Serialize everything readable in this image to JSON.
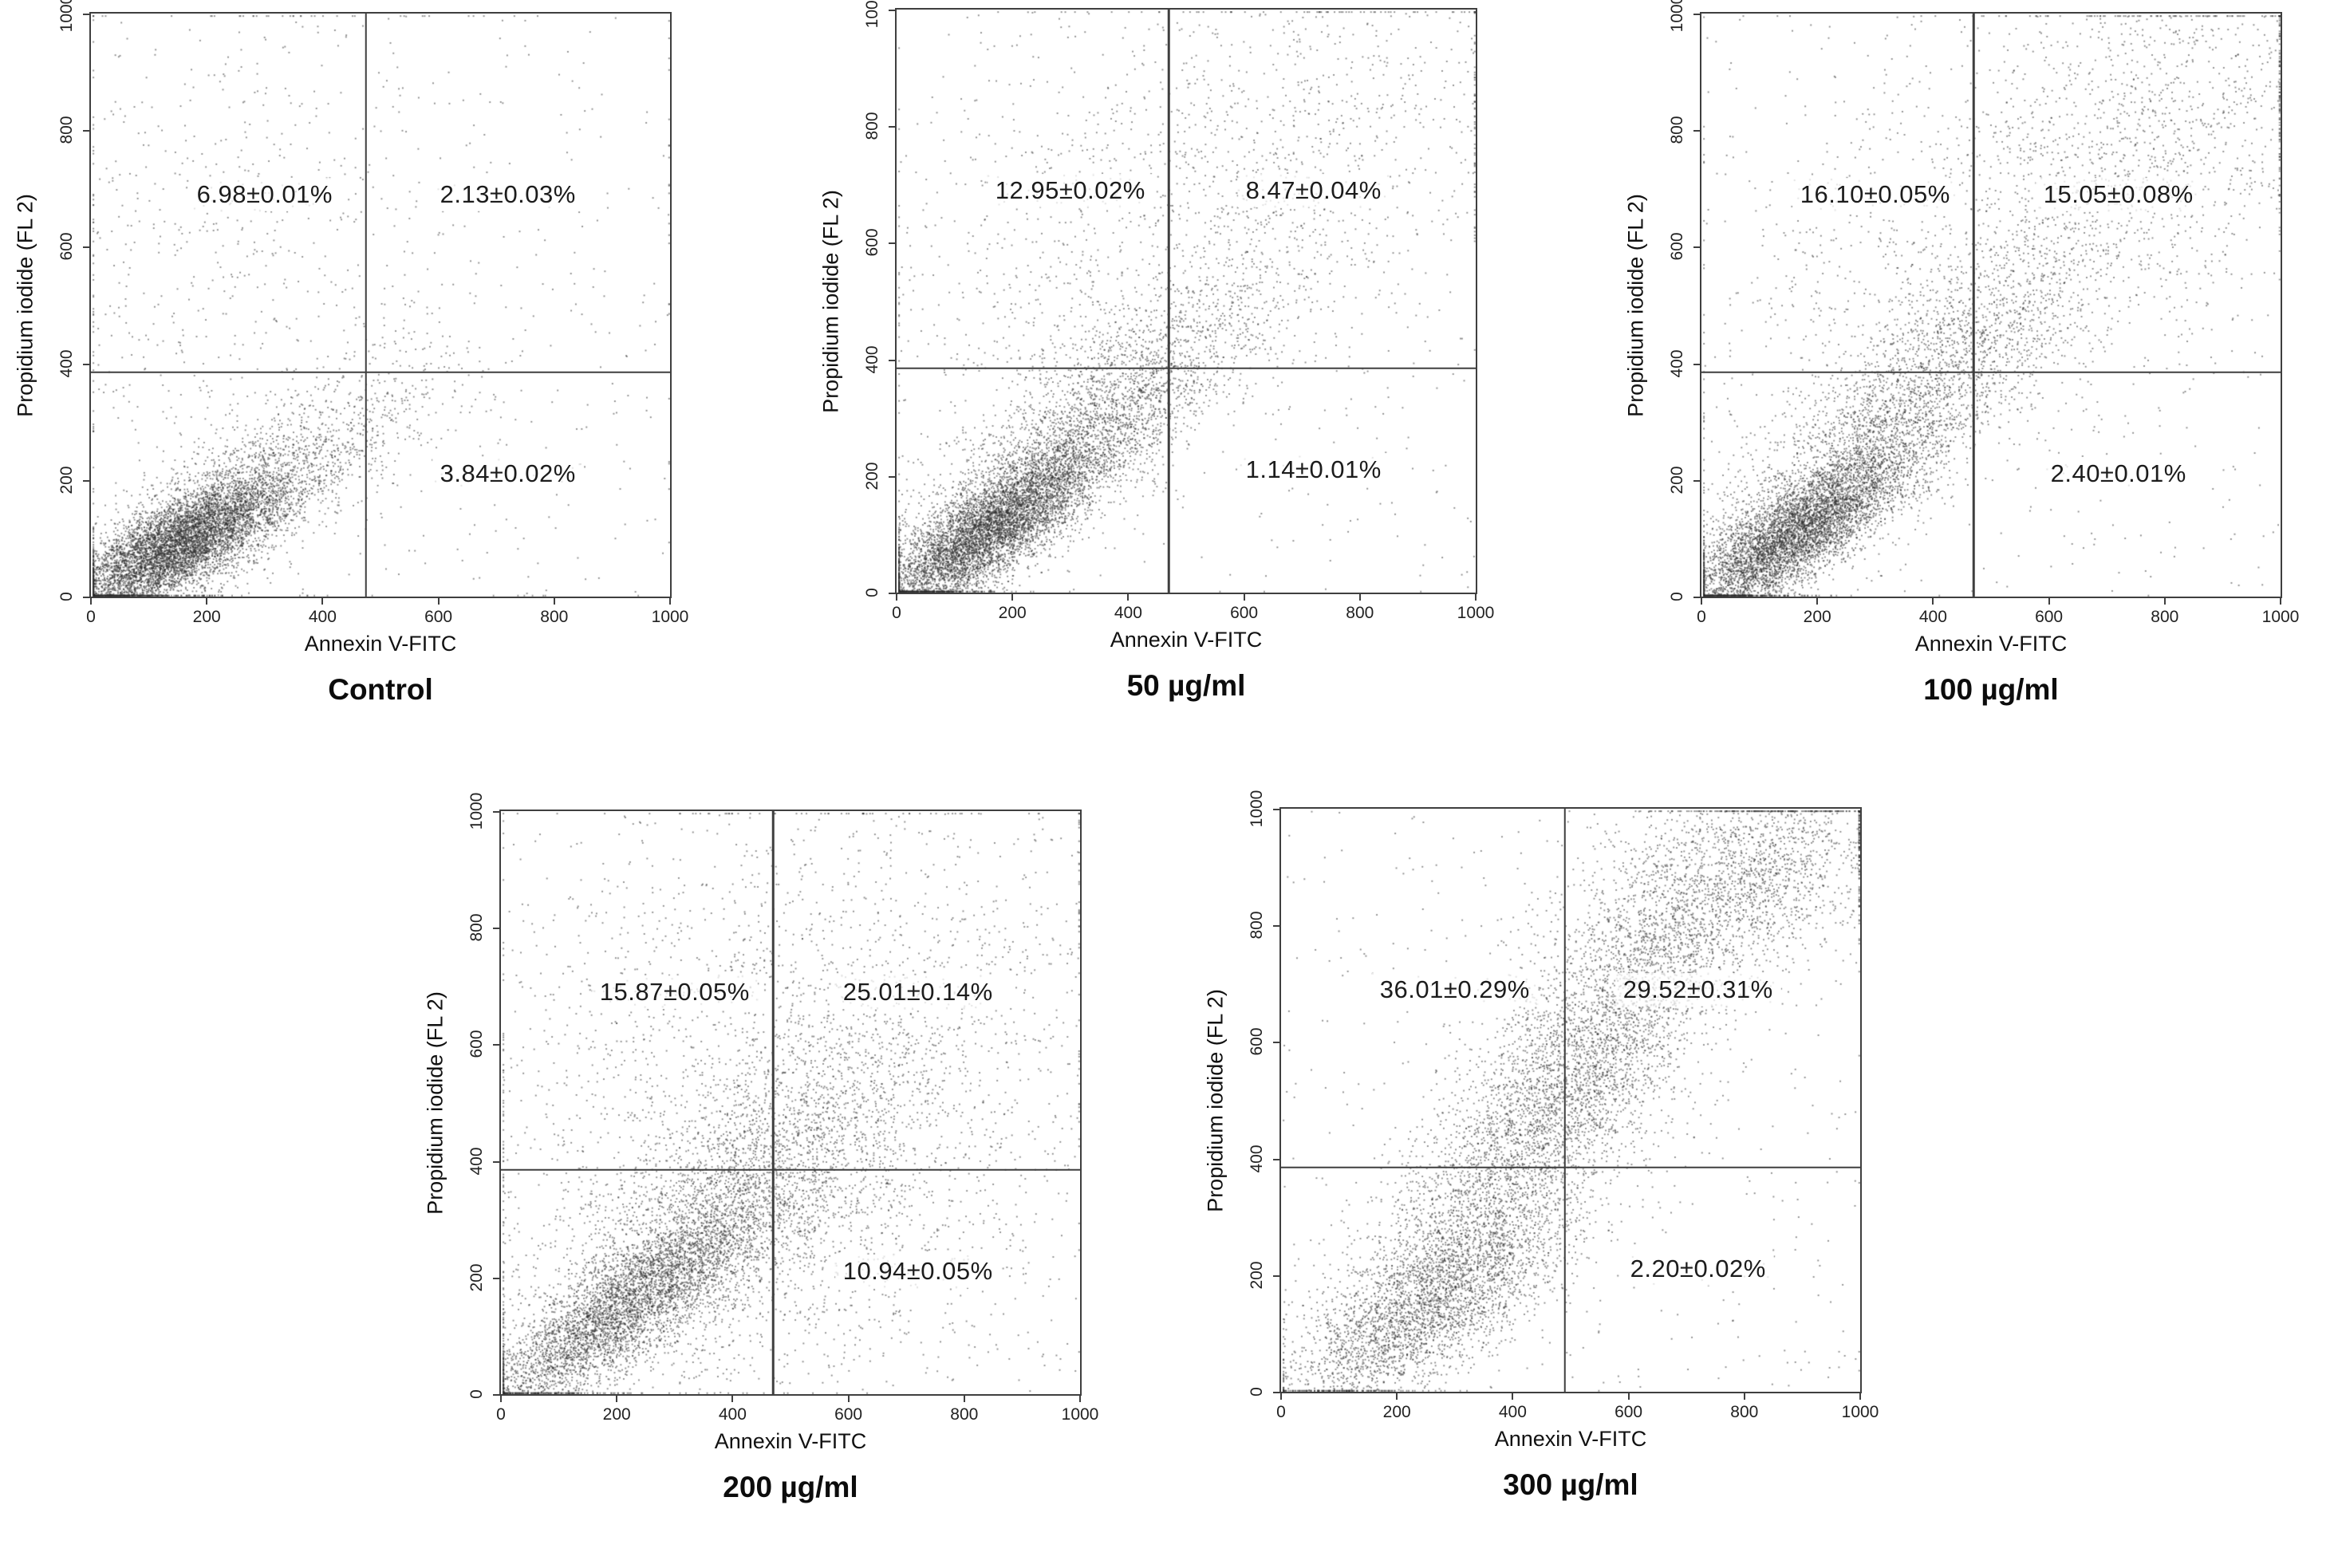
{
  "figure": {
    "background": "#ffffff",
    "axis_color": "#3f3f3f",
    "dot_color": "#2d2d2d",
    "text_color": "#1c1c1c"
  },
  "chart_data": [
    {
      "type": "scatter",
      "title": "Control",
      "xlabel": "Annexin V-FITC",
      "ylabel": "Propidium iodide (FL 2)",
      "xlim": [
        0,
        1000
      ],
      "ylim": [
        0,
        1000
      ],
      "xticks": [
        0,
        200,
        400,
        600,
        800,
        1000
      ],
      "yticks": [
        0,
        200,
        400,
        600,
        800,
        1000
      ],
      "grid": false,
      "gate": {
        "x": 475,
        "y": 385
      },
      "quadrant_labels": {
        "upper_left": "6.98±0.01%",
        "upper_right": "2.13±0.03%",
        "lower_right": "3.84±0.02%"
      },
      "scatter_profile": {
        "clusters": [
          {
            "n": 6000,
            "cx": 150,
            "cy": 90,
            "sx": 95,
            "sy": 60,
            "rho": 0.75
          },
          {
            "n": 1800,
            "cx": 280,
            "cy": 185,
            "sx": 150,
            "sy": 105,
            "rho": 0.8
          },
          {
            "n": 420,
            "cx": 210,
            "cy": 560,
            "sx": 160,
            "sy": 240,
            "rho": 0.1
          },
          {
            "n": 330,
            "cx": 520,
            "cy": 520,
            "sx": 330,
            "sy": 330,
            "rho": 0.0
          }
        ],
        "uniform": 260
      }
    },
    {
      "type": "scatter",
      "title": "50 µg/ml",
      "xlabel": "Annexin V-FITC",
      "ylabel": "Propidium iodide (FL 2)",
      "xlim": [
        0,
        1000
      ],
      "ylim": [
        0,
        1000
      ],
      "xticks": [
        0,
        200,
        400,
        600,
        800,
        1000
      ],
      "yticks": [
        0,
        200,
        400,
        600,
        800,
        1000
      ],
      "grid": false,
      "gate": {
        "x": 470,
        "y": 385
      },
      "quadrant_labels": {
        "upper_left": "12.95±0.02%",
        "upper_right": "8.47±0.04%",
        "lower_right": "1.14±0.01%"
      },
      "scatter_profile": {
        "clusters": [
          {
            "n": 5500,
            "cx": 160,
            "cy": 110,
            "sx": 100,
            "sy": 75,
            "rho": 0.82
          },
          {
            "n": 3000,
            "cx": 320,
            "cy": 270,
            "sx": 160,
            "sy": 140,
            "rho": 0.85
          },
          {
            "n": 900,
            "cx": 380,
            "cy": 560,
            "sx": 200,
            "sy": 210,
            "rho": 0.3
          },
          {
            "n": 700,
            "cx": 720,
            "cy": 760,
            "sx": 200,
            "sy": 170,
            "rho": 0.2
          }
        ],
        "uniform": 360
      }
    },
    {
      "type": "scatter",
      "title": "100 µg/ml",
      "xlabel": "Annexin V-FITC",
      "ylabel": "Propidium iodide (FL 2)",
      "xlim": [
        0,
        1000
      ],
      "ylim": [
        0,
        1000
      ],
      "xticks": [
        0,
        200,
        400,
        600,
        800,
        1000
      ],
      "yticks": [
        0,
        200,
        400,
        600,
        800,
        1000
      ],
      "grid": false,
      "gate": {
        "x": 470,
        "y": 385
      },
      "quadrant_labels": {
        "upper_left": "16.10±0.05%",
        "upper_right": "15.05±0.08%",
        "lower_right": "2.40±0.01%"
      },
      "scatter_profile": {
        "clusters": [
          {
            "n": 5000,
            "cx": 160,
            "cy": 110,
            "sx": 100,
            "sy": 75,
            "rho": 0.82
          },
          {
            "n": 3000,
            "cx": 330,
            "cy": 300,
            "sx": 170,
            "sy": 160,
            "rho": 0.85
          },
          {
            "n": 900,
            "cx": 420,
            "cy": 560,
            "sx": 220,
            "sy": 210,
            "rho": 0.3
          },
          {
            "n": 1100,
            "cx": 760,
            "cy": 790,
            "sx": 170,
            "sy": 150,
            "rho": 0.3
          }
        ],
        "uniform": 400
      }
    },
    {
      "type": "scatter",
      "title": "200 µg/ml",
      "xlabel": "Annexin V-FITC",
      "ylabel": "Propidium iodide (FL 2)",
      "xlim": [
        0,
        1000
      ],
      "ylim": [
        0,
        1000
      ],
      "xticks": [
        0,
        200,
        400,
        600,
        800,
        1000
      ],
      "yticks": [
        0,
        200,
        400,
        600,
        800,
        1000
      ],
      "grid": false,
      "gate": {
        "x": 470,
        "y": 385
      },
      "quadrant_labels": {
        "upper_left": "15.87±0.05%",
        "upper_right": "25.01±0.14%",
        "lower_right": "10.94±0.05%"
      },
      "scatter_profile": {
        "clusters": [
          {
            "n": 3800,
            "cx": 210,
            "cy": 150,
            "sx": 125,
            "sy": 95,
            "rho": 0.85
          },
          {
            "n": 3200,
            "cx": 390,
            "cy": 330,
            "sx": 190,
            "sy": 170,
            "rho": 0.8
          },
          {
            "n": 1600,
            "cx": 470,
            "cy": 600,
            "sx": 260,
            "sy": 220,
            "rho": 0.25
          },
          {
            "n": 700,
            "cx": 560,
            "cy": 260,
            "sx": 190,
            "sy": 130,
            "rho": 0.4
          }
        ],
        "uniform": 600
      }
    },
    {
      "type": "scatter",
      "title": "300 µg/ml",
      "xlabel": "Annexin V-FITC",
      "ylabel": "Propidium iodide (FL 2)",
      "xlim": [
        0,
        1000
      ],
      "ylim": [
        0,
        1000
      ],
      "xticks": [
        0,
        200,
        400,
        600,
        800,
        1000
      ],
      "yticks": [
        0,
        200,
        400,
        600,
        800,
        1000
      ],
      "grid": false,
      "gate": {
        "x": 490,
        "y": 385
      },
      "quadrant_labels": {
        "upper_left": "36.01±0.29%",
        "upper_right": "29.52±0.31%",
        "lower_right": "2.20±0.02%"
      },
      "scatter_profile": {
        "clusters": [
          {
            "n": 2600,
            "cx": 260,
            "cy": 150,
            "sx": 120,
            "sy": 85,
            "rho": 0.7
          },
          {
            "n": 3200,
            "cx": 420,
            "cy": 420,
            "sx": 170,
            "sy": 200,
            "rho": 0.88
          },
          {
            "n": 2200,
            "cx": 560,
            "cy": 650,
            "sx": 150,
            "sy": 180,
            "rho": 0.8
          },
          {
            "n": 1600,
            "cx": 790,
            "cy": 880,
            "sx": 140,
            "sy": 95,
            "rho": 0.4
          }
        ],
        "uniform": 500
      }
    }
  ]
}
